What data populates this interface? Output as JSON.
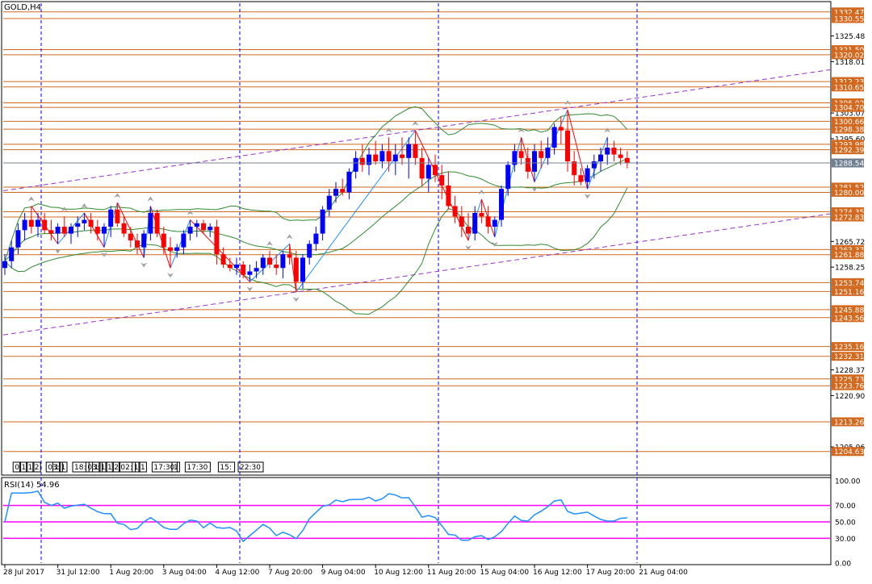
{
  "chart_data": {
    "type": "candlestick",
    "title": "GOLD,H4",
    "price_axis": {
      "min": 1198,
      "max": 1335,
      "ticks": [
        1325.48,
        1318.01,
        1303.07,
        1295.6,
        1265.72,
        1258.25,
        1228.37,
        1220.9,
        1205.96
      ]
    },
    "current_price": 1288.54,
    "level_lines": [
      1332.47,
      1330.55,
      1321.5,
      1320.02,
      1312.23,
      1310.65,
      1306.02,
      1304.7,
      1300.66,
      1298.38,
      1293.98,
      1292.39,
      1281.52,
      1280.0,
      1274.35,
      1272.83,
      1263.37,
      1261.88,
      1253.74,
      1251.16,
      1245.88,
      1243.56,
      1235.16,
      1232.31,
      1225.73,
      1223.76,
      1213.26,
      1204.63
    ],
    "time_axis": {
      "labels": [
        "28 Jul 2017",
        "31 Jul 12:00",
        "1 Aug 20:00",
        "3 Aug 04:00",
        "4 Aug 12:00",
        "7 Aug 20:00",
        "9 Aug 04:00",
        "10 Aug 12:00",
        "11 Aug 20:00",
        "15 Aug 04:00",
        "16 Aug 12:00",
        "17 Aug 20:00",
        "21 Aug 04:00"
      ],
      "label_index": [
        0,
        8,
        16,
        24,
        32,
        40,
        48,
        56,
        64,
        72,
        80,
        88,
        96
      ]
    },
    "period_separators": [
      5,
      35,
      65,
      95
    ],
    "session_boxes": [
      {
        "label": "0",
        "bar": 1
      },
      {
        "label": "1",
        "bar": 2
      },
      {
        "label": "1",
        "bar": 3
      },
      {
        "label": "2",
        "bar": 4
      },
      {
        "label": "03:",
        "bar": 6
      },
      {
        "label": "1",
        "bar": 7
      },
      {
        "label": "1",
        "bar": 8
      },
      {
        "label": "18:",
        "bar": 10
      },
      {
        "label": "03:",
        "bar": 12
      },
      {
        "label": "1",
        "bar": 13
      },
      {
        "label": "1",
        "bar": 14
      },
      {
        "label": "1",
        "bar": 15
      },
      {
        "label": "2",
        "bar": 16
      },
      {
        "label": "02:",
        "bar": 17
      },
      {
        "label": "1",
        "bar": 19
      },
      {
        "label": "1",
        "bar": 20
      },
      {
        "label": "17:30",
        "bar": 22
      },
      {
        "label": "1",
        "bar": 25
      },
      {
        "label": "17:30",
        "bar": 27
      },
      {
        "label": "15:",
        "bar": 32
      },
      {
        "label": "22:30",
        "bar": 35
      }
    ],
    "candles": [
      [
        1258,
        1262,
        1256,
        1260
      ],
      [
        1260,
        1266,
        1258,
        1264
      ],
      [
        1264,
        1271,
        1262,
        1269
      ],
      [
        1269,
        1274,
        1266,
        1272
      ],
      [
        1272,
        1276,
        1268,
        1270
      ],
      [
        1270,
        1274,
        1267,
        1272
      ],
      [
        1272,
        1274,
        1268,
        1269
      ],
      [
        1269,
        1272,
        1266,
        1268
      ],
      [
        1268,
        1271,
        1265,
        1270
      ],
      [
        1270,
        1273,
        1267,
        1268
      ],
      [
        1268,
        1271,
        1265,
        1270
      ],
      [
        1270,
        1273,
        1267,
        1271
      ],
      [
        1271,
        1274,
        1269,
        1272
      ],
      [
        1272,
        1274,
        1268,
        1270
      ],
      [
        1270,
        1272,
        1266,
        1268
      ],
      [
        1268,
        1271,
        1264,
        1270
      ],
      [
        1270,
        1276,
        1267,
        1275
      ],
      [
        1275,
        1277,
        1270,
        1271
      ],
      [
        1271,
        1273,
        1267,
        1268
      ],
      [
        1268,
        1270,
        1264,
        1266
      ],
      [
        1266,
        1268,
        1262,
        1264
      ],
      [
        1264,
        1269,
        1261,
        1268
      ],
      [
        1268,
        1276,
        1266,
        1274
      ],
      [
        1274,
        1275,
        1267,
        1268
      ],
      [
        1268,
        1270,
        1262,
        1264
      ],
      [
        1264,
        1267,
        1258,
        1263
      ],
      [
        1263,
        1265,
        1261,
        1264
      ],
      [
        1264,
        1269,
        1262,
        1268
      ],
      [
        1268,
        1272,
        1266,
        1270
      ],
      [
        1270,
        1272,
        1267,
        1271
      ],
      [
        1271,
        1272,
        1268,
        1269
      ],
      [
        1269,
        1271,
        1267,
        1270
      ],
      [
        1270,
        1272,
        1259,
        1262
      ],
      [
        1262,
        1264,
        1258,
        1259
      ],
      [
        1259,
        1261,
        1257,
        1258
      ],
      [
        1258,
        1261,
        1256,
        1259
      ],
      [
        1259,
        1260,
        1255,
        1256
      ],
      [
        1256,
        1259,
        1254,
        1257
      ],
      [
        1257,
        1260,
        1255,
        1258
      ],
      [
        1258,
        1262,
        1256,
        1261
      ],
      [
        1261,
        1263,
        1258,
        1259
      ],
      [
        1259,
        1262,
        1256,
        1258
      ],
      [
        1258,
        1263,
        1255,
        1262
      ],
      [
        1262,
        1265,
        1259,
        1261
      ],
      [
        1261,
        1263,
        1251,
        1254
      ],
      [
        1254,
        1262,
        1252,
        1261
      ],
      [
        1261,
        1266,
        1259,
        1265
      ],
      [
        1265,
        1270,
        1263,
        1268
      ],
      [
        1268,
        1276,
        1266,
        1275
      ],
      [
        1275,
        1281,
        1273,
        1279
      ],
      [
        1279,
        1283,
        1277,
        1281
      ],
      [
        1281,
        1284,
        1279,
        1280
      ],
      [
        1280,
        1287,
        1278,
        1286
      ],
      [
        1286,
        1292,
        1284,
        1290
      ],
      [
        1290,
        1294,
        1286,
        1288
      ],
      [
        1288,
        1293,
        1285,
        1291
      ],
      [
        1291,
        1295,
        1288,
        1289
      ],
      [
        1289,
        1294,
        1287,
        1292
      ],
      [
        1292,
        1296,
        1286,
        1289
      ],
      [
        1289,
        1294,
        1285,
        1291
      ],
      [
        1291,
        1296,
        1288,
        1290
      ],
      [
        1290,
        1296,
        1284,
        1294
      ],
      [
        1294,
        1298,
        1288,
        1290
      ],
      [
        1290,
        1293,
        1282,
        1284
      ],
      [
        1284,
        1290,
        1280,
        1288
      ],
      [
        1288,
        1291,
        1283,
        1285
      ],
      [
        1285,
        1288,
        1278,
        1282
      ],
      [
        1282,
        1286,
        1275,
        1276
      ],
      [
        1276,
        1279,
        1271,
        1273
      ],
      [
        1273,
        1276,
        1267,
        1270
      ],
      [
        1270,
        1274,
        1266,
        1268
      ],
      [
        1268,
        1276,
        1266,
        1274
      ],
      [
        1274,
        1278,
        1271,
        1273
      ],
      [
        1273,
        1276,
        1268,
        1270
      ],
      [
        1270,
        1273,
        1267,
        1272
      ],
      [
        1272,
        1282,
        1270,
        1281
      ],
      [
        1281,
        1289,
        1279,
        1288
      ],
      [
        1288,
        1294,
        1286,
        1292
      ],
      [
        1292,
        1296,
        1288,
        1290
      ],
      [
        1290,
        1293,
        1284,
        1286
      ],
      [
        1286,
        1294,
        1283,
        1292
      ],
      [
        1292,
        1295,
        1287,
        1290
      ],
      [
        1290,
        1296,
        1288,
        1293
      ],
      [
        1293,
        1300,
        1291,
        1299
      ],
      [
        1299,
        1302,
        1294,
        1298
      ],
      [
        1298,
        1304,
        1286,
        1289
      ],
      [
        1289,
        1292,
        1282,
        1285
      ],
      [
        1285,
        1287,
        1282,
        1283
      ],
      [
        1283,
        1288,
        1281,
        1287
      ],
      [
        1287,
        1291,
        1284,
        1289
      ],
      [
        1289,
        1293,
        1286,
        1291
      ],
      [
        1291,
        1296,
        1288,
        1293
      ],
      [
        1293,
        1295,
        1289,
        1291
      ],
      [
        1291,
        1293,
        1288,
        1290
      ],
      [
        1290,
        1292,
        1287,
        1288.54
      ]
    ],
    "rsi": {
      "label": "RSI(14) 54.96",
      "period": 14,
      "value": 54.96,
      "ticks": [
        100,
        70,
        50,
        30,
        0
      ],
      "tick_labels": [
        "100.00",
        "70.00",
        "50.00",
        "30.00",
        "0.00"
      ],
      "levels": [
        70,
        50,
        30
      ]
    },
    "colors": {
      "bull": "#0000ff",
      "bear": "#ff0000",
      "bollinger": "#2e8b2e",
      "channel": "#9932cc",
      "zigzag_down": "#ff0000",
      "zigzag_up": "#1e90ff",
      "level_line": "#d2691e",
      "separator": "#0000ff",
      "rsi_line": "#1e90ff",
      "rsi_level": "#ff00ff",
      "price_tag": "#d2691e",
      "current_tag": "#708090"
    }
  }
}
